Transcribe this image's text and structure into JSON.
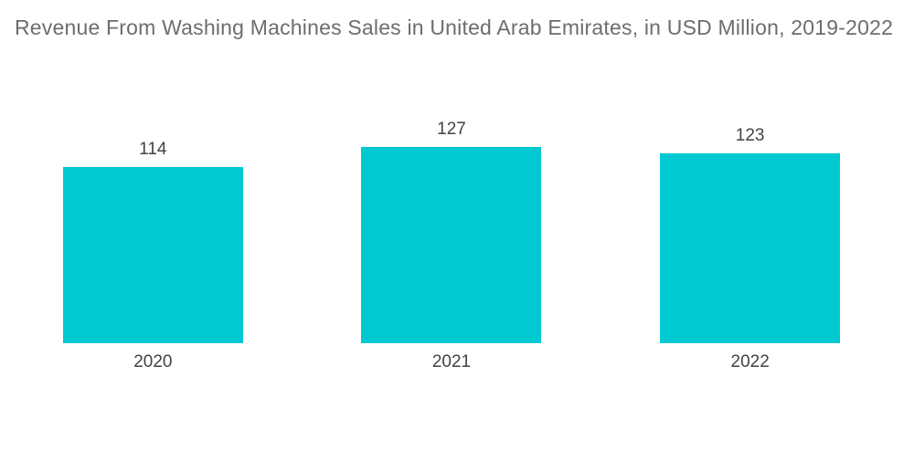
{
  "chart_data": {
    "type": "bar",
    "title": "Revenue From Washing Machines Sales in United Arab Emirates, in USD Million, 2019-2022",
    "categories": [
      "2020",
      "2021",
      "2022"
    ],
    "values": [
      114,
      127,
      123
    ],
    "value_labels": [
      "114",
      "127",
      "123"
    ],
    "xlabel": "",
    "ylabel": "",
    "ylim": [
      0,
      140
    ],
    "grid": false,
    "legend": false,
    "axis_lines": false,
    "bar_color": "#00c9d1",
    "label_color": "#3f4347",
    "title_color": "#6a6e71",
    "background_color": "#ffffff"
  }
}
